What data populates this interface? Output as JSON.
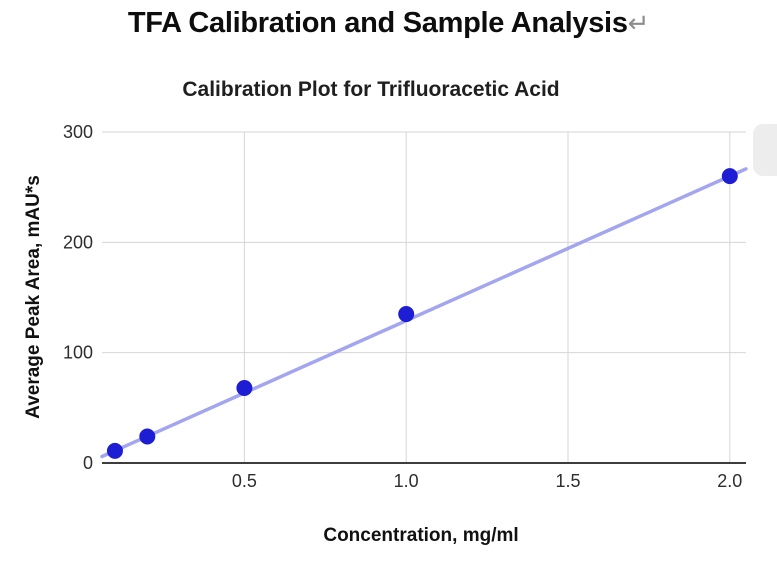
{
  "document": {
    "title": "TFA Calibration and Sample Analysis",
    "title_return_mark": "↵"
  },
  "chart_data": {
    "type": "scatter",
    "title": "Calibration Plot for Trifluoracetic Acid",
    "xlabel": "Concentration, mg/ml",
    "ylabel": "Average Peak Area, mAU*s",
    "x": [
      0.1,
      0.2,
      0.5,
      1.0,
      2.0
    ],
    "y": [
      11,
      24,
      68,
      135,
      260
    ],
    "trendline": {
      "slope": 131,
      "intercept": -2
    },
    "xlim": [
      0.06,
      2.05
    ],
    "ylim": [
      0,
      300
    ],
    "xticks": {
      "values": [
        0.5,
        1.0,
        1.5,
        2.0
      ],
      "labels": [
        "0.5",
        "1.0",
        "1.5",
        "2.0"
      ]
    },
    "yticks": {
      "values": [
        0,
        100,
        200,
        300
      ],
      "labels": [
        "0",
        "100",
        "200",
        "300"
      ]
    },
    "grid": true,
    "legend": "none",
    "colors": {
      "point": "#1d1dd3",
      "trendline": "#a3a6ef",
      "grid": "#d6d6d6",
      "axis": "#3d3d3d",
      "tick_text": "#2e2e2e"
    }
  }
}
